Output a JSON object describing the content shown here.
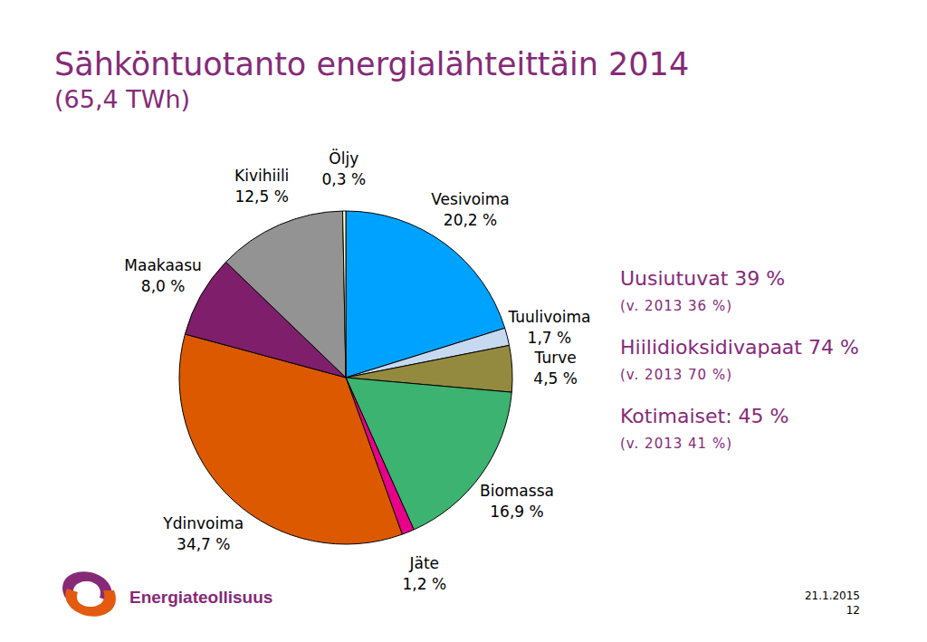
{
  "chart_data": {
    "type": "pie",
    "title": "Sähköntuotanto energialähteittäin 2014",
    "subtitle": "(65,4 TWh)",
    "categories": [
      "Vesivoima",
      "Tuulivoima",
      "Turve",
      "Biomassa",
      "Jäte",
      "Ydinvoima",
      "Maakaasu",
      "Kivihiili",
      "Öljy"
    ],
    "values": [
      20.2,
      1.7,
      4.5,
      16.9,
      1.2,
      34.7,
      8.0,
      12.5,
      0.3
    ],
    "value_labels": [
      "20,2 %",
      "1,7 %",
      "4,5 %",
      "16,9 %",
      "1,2 %",
      "34,7 %",
      "8,0 %",
      "12,5 %",
      "0,3 %"
    ],
    "colors": [
      "#00a2ff",
      "#c6d9f1",
      "#948a3f",
      "#3cb371",
      "#e8008a",
      "#dd5900",
      "#7f1f6b",
      "#939393",
      "#ffffcc"
    ],
    "data_labels": true,
    "annotations": [
      "Uusiutuvat 39 %",
      "(v. 2013 36 %)",
      "Hiilidioksidivapaat 74 %",
      "(v. 2013 70 %)",
      "Kotimaiset: 45 %",
      "(v. 2013 41 %)"
    ]
  },
  "footer": {
    "logo": "Energiateollisuus",
    "date": "21.1.2015",
    "page": "12"
  }
}
